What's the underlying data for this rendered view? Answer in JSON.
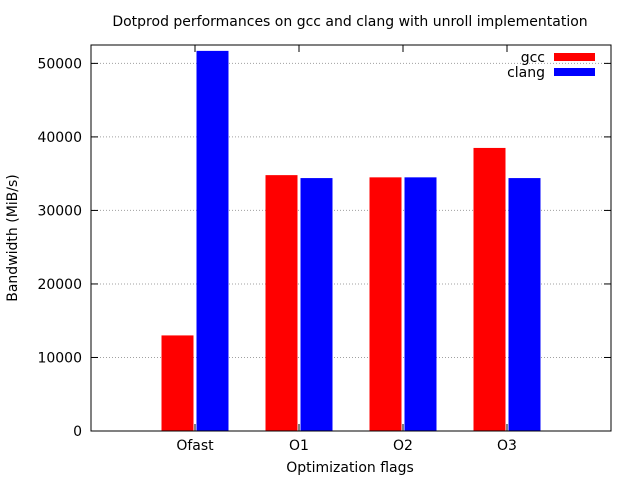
{
  "chart_data": {
    "type": "bar",
    "title": "Dotprod performances on gcc and clang with unroll implementation",
    "xlabel": "Optimization flags",
    "ylabel": "Bandwidth (MiB/s)",
    "categories": [
      "Ofast",
      "O1",
      "O2",
      "O3"
    ],
    "ylim": [
      0,
      52500
    ],
    "yticks": [
      0,
      10000,
      20000,
      30000,
      40000,
      50000
    ],
    "grid": true,
    "legend_position": "top-right",
    "series": [
      {
        "name": "gcc",
        "color": "#ff0000",
        "values": [
          13000,
          34800,
          34500,
          38500
        ]
      },
      {
        "name": "clang",
        "color": "#0000ff",
        "values": [
          51700,
          34400,
          34500,
          34400
        ]
      }
    ]
  }
}
